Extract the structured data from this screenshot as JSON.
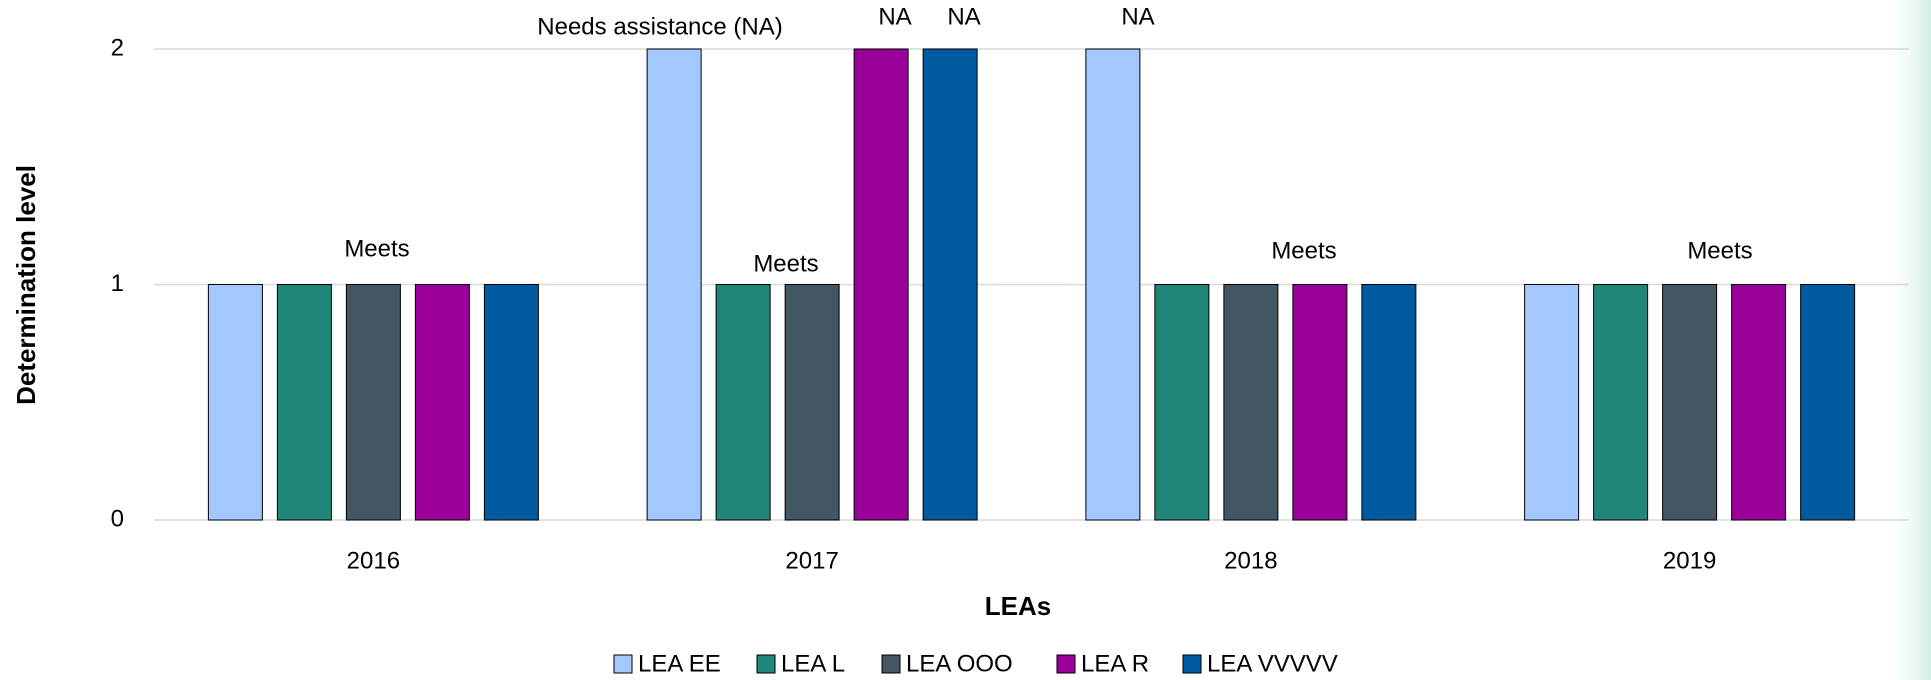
{
  "chart_data": {
    "type": "bar",
    "categories": [
      "2016",
      "2017",
      "2018",
      "2019"
    ],
    "series": [
      {
        "name": "LEA EE",
        "color": "#a3c8ff",
        "values": [
          1,
          2,
          2,
          1
        ]
      },
      {
        "name": "LEA L",
        "color": "#21867a",
        "values": [
          1,
          1,
          1,
          1
        ]
      },
      {
        "name": "LEA OOO",
        "color": "#435663",
        "values": [
          1,
          1,
          1,
          1
        ]
      },
      {
        "name": "LEA R",
        "color": "#990099",
        "values": [
          1,
          2,
          1,
          1
        ]
      },
      {
        "name": "LEA VVVVV",
        "color": "#005aa0",
        "values": [
          1,
          2,
          1,
          1
        ]
      }
    ],
    "ylim": [
      0,
      2
    ],
    "yticks": [
      0,
      1,
      2
    ],
    "grid": true,
    "xlabel": "LEAs",
    "ylabel": "Determination level",
    "annotations": [
      "Meets",
      "Needs assistance (NA)",
      "Meets",
      "NA",
      "NA",
      "NA",
      "Meets",
      "Meets"
    ],
    "legend": "bottom"
  }
}
